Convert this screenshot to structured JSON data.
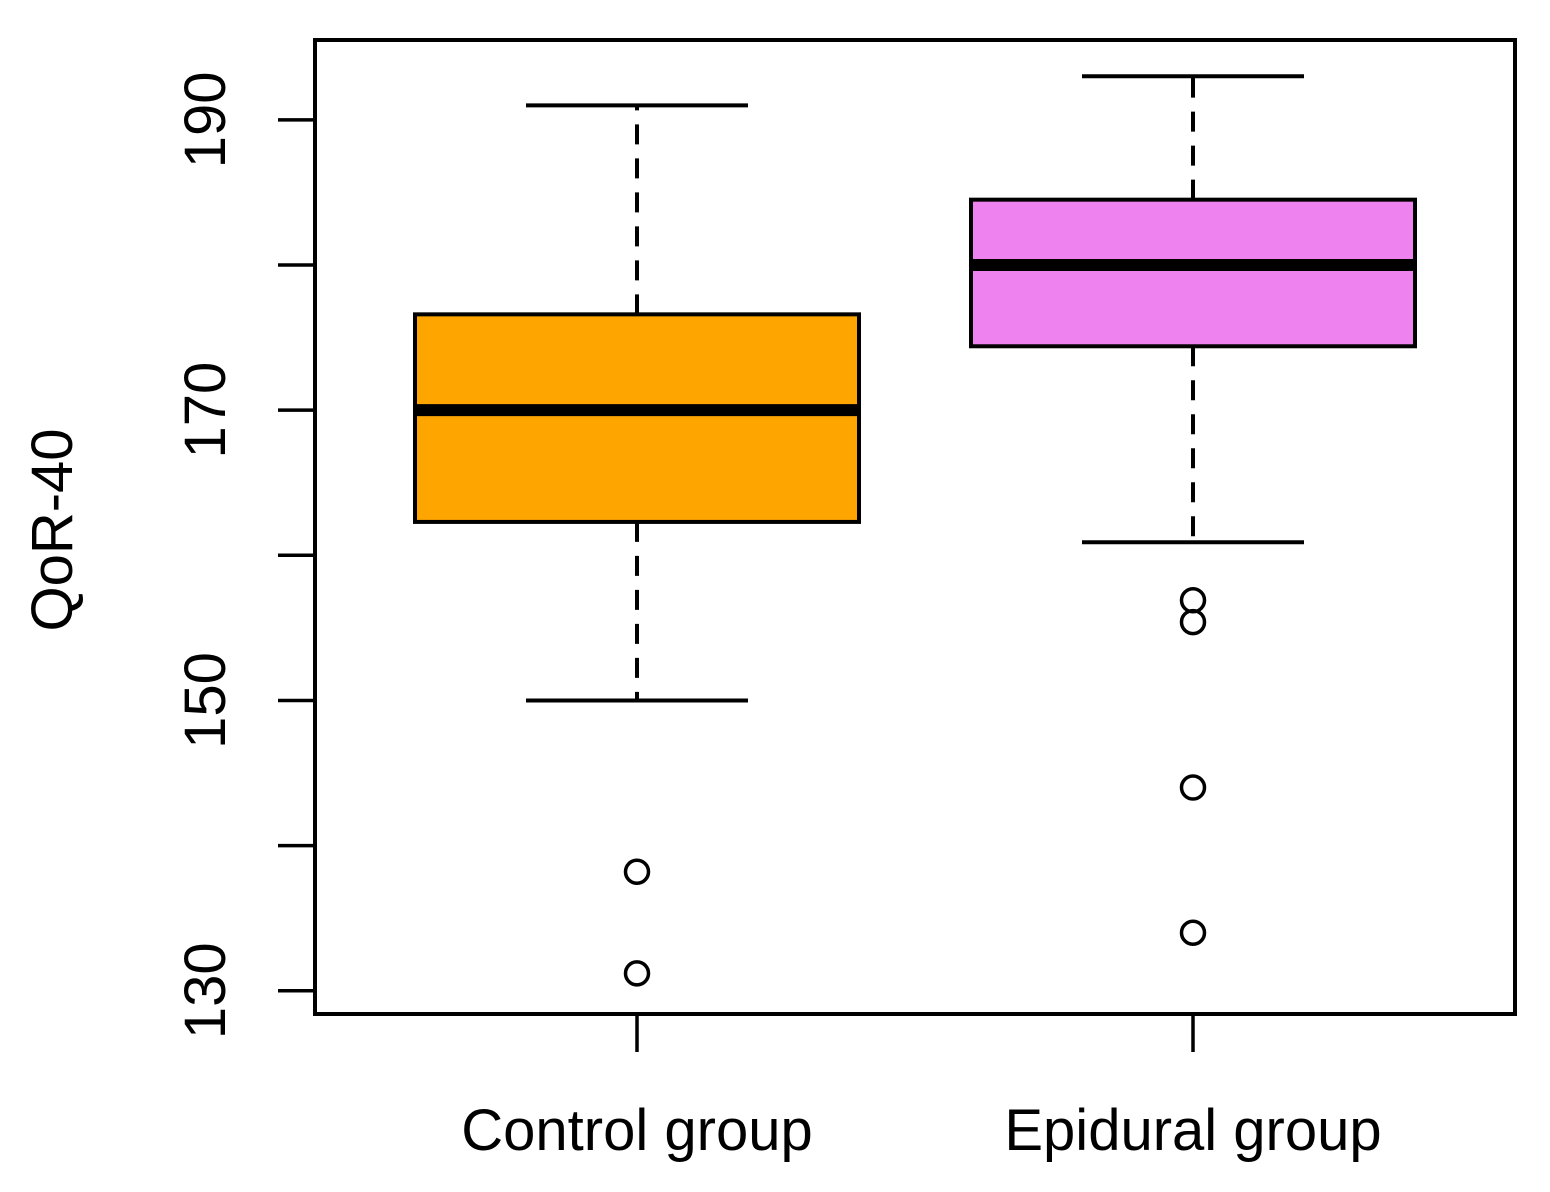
{
  "chart_data": {
    "type": "boxplot",
    "title": "",
    "xlabel": "",
    "ylabel": "QoR-40",
    "ylim": [
      128.4,
      195.5
    ],
    "y_ticks": [
      130,
      140,
      150,
      160,
      170,
      180,
      190
    ],
    "y_tick_labels": [
      "130",
      "",
      "150",
      "",
      "170",
      "",
      "190"
    ],
    "grid": false,
    "categories": [
      "Control group",
      "Epidural group"
    ],
    "series": [
      {
        "name": "Control group",
        "color": "#FFA500",
        "whisker_low": 150,
        "q1": 162.3,
        "median": 170,
        "q3": 176.6,
        "whisker_high": 191,
        "outliers": [
          138.2,
          131.2
        ]
      },
      {
        "name": "Epidural group",
        "color": "#EE82EE",
        "whisker_low": 160.9,
        "q1": 174.4,
        "median": 180,
        "q3": 184.5,
        "whisker_high": 193,
        "outliers": [
          156.9,
          155.4,
          144,
          134
        ]
      }
    ]
  }
}
